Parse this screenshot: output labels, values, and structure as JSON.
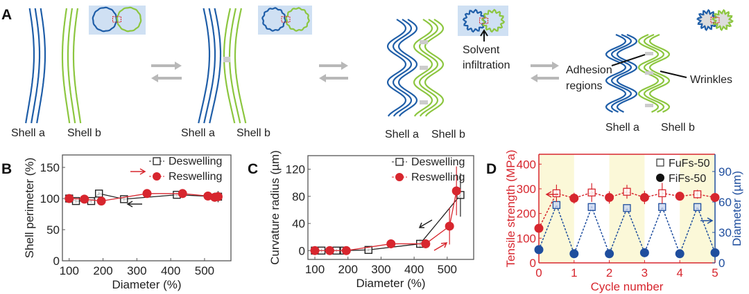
{
  "panels": {
    "a": "A",
    "b": "B",
    "c": "C",
    "d": "D"
  },
  "diagram": {
    "shell_a": "Shell a",
    "shell_b": "Shell b",
    "solvent_1": "Solvent",
    "solvent_2": "infiltration",
    "adhesion_1": "Adhesion",
    "adhesion_2": "regions",
    "wrinkles": "Wrinkles",
    "colors": {
      "shell_a": "#1f5ea8",
      "shell_b": "#8cc63f",
      "inset_bg": "#cfe0f3",
      "arrow": "#b8b8b8"
    }
  },
  "chart_data": [
    {
      "id": "B",
      "type": "line",
      "xlabel": "Diameter (%)",
      "ylabel": "Shell perimeter (%)",
      "xlim": [
        80,
        578
      ],
      "ylim": [
        0,
        170
      ],
      "xticks": [
        100,
        200,
        300,
        400,
        500
      ],
      "yticks": [
        0,
        50,
        100,
        150
      ],
      "legend_position": "top-right",
      "series": [
        {
          "name": "Deswelling",
          "marker": "open-square",
          "color": "#222222",
          "x": [
            100,
            120,
            165,
            188,
            262,
            418,
            540
          ],
          "y": [
            100,
            96,
            96,
            108,
            99,
            106,
            103
          ],
          "err": [
            6,
            3,
            3,
            3,
            3,
            3,
            9
          ]
        },
        {
          "name": "Reswelling",
          "marker": "filled-circle",
          "color": "#d7262e",
          "x": [
            100,
            145,
            195,
            330,
            435,
            510,
            530,
            540
          ],
          "y": [
            100,
            99,
            96,
            108,
            108,
            104,
            102,
            103
          ],
          "err": [
            4,
            3,
            3,
            3,
            7,
            3,
            3,
            4
          ]
        }
      ]
    },
    {
      "id": "C",
      "type": "line",
      "xlabel": "Diameter (%)",
      "ylabel": "Curvature radius (µm)",
      "xlim": [
        79,
        580
      ],
      "ylim": [
        -13,
        140
      ],
      "xticks": [
        100,
        200,
        300,
        400,
        500
      ],
      "yticks": [
        0,
        40,
        80,
        120
      ],
      "legend_position": "top-right",
      "series": [
        {
          "name": "Deswelling",
          "marker": "open-square",
          "color": "#222222",
          "x": [
            100,
            120,
            165,
            188,
            262,
            418,
            540
          ],
          "y": [
            0,
            0,
            0,
            0,
            1,
            10,
            82
          ],
          "err": [
            3,
            3,
            3,
            3,
            2,
            6,
            32
          ]
        },
        {
          "name": "Reswelling",
          "marker": "filled-circle",
          "color": "#d7262e",
          "x": [
            100,
            145,
            195,
            330,
            435,
            507,
            528
          ],
          "y": [
            0,
            0,
            0,
            10,
            10,
            36,
            88
          ],
          "err": [
            0,
            0,
            0,
            0,
            4,
            27,
            36
          ]
        }
      ]
    },
    {
      "id": "D",
      "type": "line",
      "xlabel": "Cycle number",
      "ylabel": "Tensile strength (MPa)",
      "ylabel_right": "Diameter (µm)",
      "xlim": [
        0,
        5
      ],
      "ylim": [
        0,
        440
      ],
      "ylim_right": [
        0,
        107
      ],
      "xticks": [
        0,
        1,
        2,
        3,
        4,
        5
      ],
      "yticks": [
        0,
        100,
        200,
        300,
        400
      ],
      "yticks_right": [
        0,
        30,
        60,
        90
      ],
      "shaded_cycles": [
        [
          0,
          1
        ],
        [
          2,
          3
        ],
        [
          4,
          5
        ]
      ],
      "legend_position": "top-right",
      "legend": [
        {
          "name": "FuFs-50",
          "marker": "open-square"
        },
        {
          "name": "FiFs-50",
          "marker": "filled-circle"
        }
      ],
      "tensile": {
        "color": "#d7262e",
        "x": [
          0,
          0.5,
          1,
          1.5,
          2,
          2.5,
          3,
          3.5,
          4,
          4.5,
          5
        ],
        "y": [
          140,
          282,
          262,
          285,
          265,
          288,
          265,
          282,
          270,
          278,
          265
        ],
        "err": [
          10,
          35,
          22,
          38,
          25,
          28,
          27,
          42,
          15,
          18,
          0
        ]
      },
      "diameter": {
        "color": "#1f4e9e",
        "x": [
          0,
          0.5,
          1,
          1.5,
          2,
          2.5,
          3,
          3.5,
          4,
          4.5,
          5
        ],
        "y": [
          13,
          57,
          9,
          55,
          9,
          54,
          10,
          55,
          9,
          55,
          10
        ]
      }
    }
  ]
}
